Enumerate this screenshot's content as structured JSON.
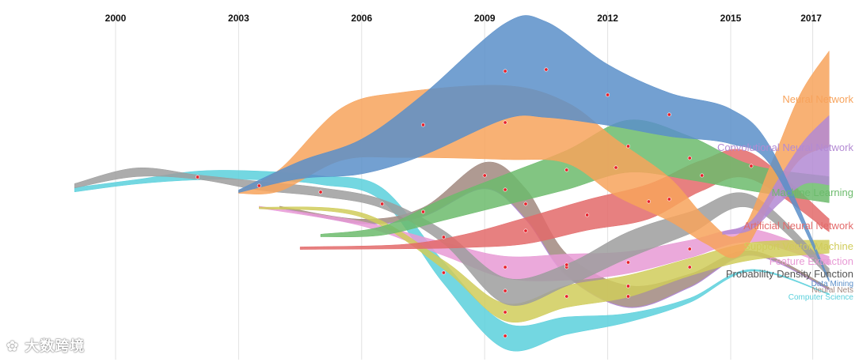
{
  "watermark": {
    "text": "大数跨境"
  },
  "chart_data": {
    "type": "streamgraph",
    "x_ticks": [
      2000,
      2003,
      2006,
      2009,
      2012,
      2015,
      2017
    ],
    "grid": true,
    "series": [
      {
        "name": "Neural Network",
        "color": "#f7a35c",
        "points": [
          [
            2003.0,
            0.6
          ],
          [
            2004.0,
            5
          ],
          [
            2005.5,
            12
          ],
          [
            2007.0,
            15
          ],
          [
            2009.5,
            17
          ],
          [
            2011.0,
            14
          ],
          [
            2012.2,
            13
          ],
          [
            2013.5,
            10
          ],
          [
            2014.4,
            6
          ],
          [
            2015.2,
            5
          ],
          [
            2016.0,
            9
          ],
          [
            2016.7,
            15
          ],
          [
            2017.4,
            22
          ]
        ]
      },
      {
        "name": "Convolutional Neural Network",
        "color": "#b38ad3",
        "points": [
          [
            2014.8,
            0.6
          ],
          [
            2015.5,
            2
          ],
          [
            2016.2,
            6
          ],
          [
            2016.8,
            10
          ],
          [
            2017.4,
            16
          ]
        ]
      },
      {
        "name": "Machine Learning",
        "color": "#6cbb6c",
        "points": [
          [
            2005.0,
            0.6
          ],
          [
            2006.5,
            2
          ],
          [
            2008.0,
            5
          ],
          [
            2009.5,
            7
          ],
          [
            2011.0,
            9
          ],
          [
            2012.5,
            12
          ],
          [
            2014.0,
            10
          ],
          [
            2015.5,
            6
          ],
          [
            2017.4,
            6
          ]
        ]
      },
      {
        "name": "Artificial Neural Network",
        "color": "#e36a6a",
        "points": [
          [
            2004.5,
            0.6
          ],
          [
            2007.0,
            1
          ],
          [
            2008.5,
            3
          ],
          [
            2010.0,
            6
          ],
          [
            2011.5,
            7
          ],
          [
            2013.0,
            8
          ],
          [
            2014.3,
            7
          ],
          [
            2015.5,
            6
          ],
          [
            2017.4,
            3
          ]
        ]
      },
      {
        "name": "Support Vector Machine",
        "color": "#d0cc5a",
        "points": [
          [
            2003.5,
            0.4
          ],
          [
            2006.0,
            1
          ],
          [
            2008.0,
            2
          ],
          [
            2009.5,
            4
          ],
          [
            2011.0,
            5
          ],
          [
            2012.5,
            5
          ],
          [
            2014.0,
            4
          ],
          [
            2015.5,
            4
          ],
          [
            2017.4,
            3
          ]
        ]
      },
      {
        "name": "Feature Extraction",
        "color": "#e89ad5",
        "points": [
          [
            2003.5,
            0.4
          ],
          [
            2006.0,
            1
          ],
          [
            2008.0,
            3
          ],
          [
            2009.5,
            5
          ],
          [
            2011.0,
            6
          ],
          [
            2012.5,
            5
          ],
          [
            2014.0,
            4
          ],
          [
            2015.5,
            3
          ],
          [
            2017.4,
            2
          ]
        ]
      },
      {
        "name": "Probability Density Function",
        "color": "#9d9d9d",
        "points": [
          [
            1999.0,
            1
          ],
          [
            2000.5,
            2
          ],
          [
            2002.0,
            1
          ],
          [
            2003.5,
            2
          ],
          [
            2005.0,
            2
          ],
          [
            2006.5,
            2
          ],
          [
            2008.0,
            3
          ],
          [
            2009.5,
            6
          ],
          [
            2011.0,
            5
          ],
          [
            2012.5,
            6
          ],
          [
            2014.0,
            5
          ],
          [
            2015.5,
            3
          ],
          [
            2017.4,
            2
          ]
        ]
      },
      {
        "name": "Data Mining",
        "color": "#5b8fc9",
        "points": [
          [
            2003.0,
            0.6
          ],
          [
            2004.5,
            4
          ],
          [
            2006.0,
            8
          ],
          [
            2007.5,
            14
          ],
          [
            2009.5,
            22
          ],
          [
            2010.5,
            22
          ],
          [
            2012.0,
            14
          ],
          [
            2013.5,
            10
          ],
          [
            2015.0,
            8
          ],
          [
            2016.0,
            4
          ],
          [
            2017.4,
            0.6
          ]
        ]
      },
      {
        "name": "Neural Nets",
        "color": "#a1887f",
        "points": [
          [
            2004.0,
            0.4
          ],
          [
            2006.0,
            1
          ],
          [
            2007.5,
            2
          ],
          [
            2009.0,
            6
          ],
          [
            2010.0,
            7
          ],
          [
            2011.0,
            5
          ],
          [
            2012.5,
            5
          ],
          [
            2014.0,
            3
          ],
          [
            2015.5,
            1
          ],
          [
            2017.4,
            0.5
          ]
        ]
      },
      {
        "name": "Computer Science",
        "color": "#5ad0dc",
        "points": [
          [
            1999.0,
            1
          ],
          [
            2000.5,
            1
          ],
          [
            2002.0,
            2
          ],
          [
            2003.5,
            2
          ],
          [
            2005.0,
            2
          ],
          [
            2006.5,
            3
          ],
          [
            2008.0,
            5
          ],
          [
            2009.5,
            6
          ],
          [
            2011.0,
            4
          ],
          [
            2012.5,
            2
          ],
          [
            2014.0,
            1
          ],
          [
            2015.5,
            0.4
          ],
          [
            2017.4,
            0.2
          ]
        ]
      }
    ]
  }
}
